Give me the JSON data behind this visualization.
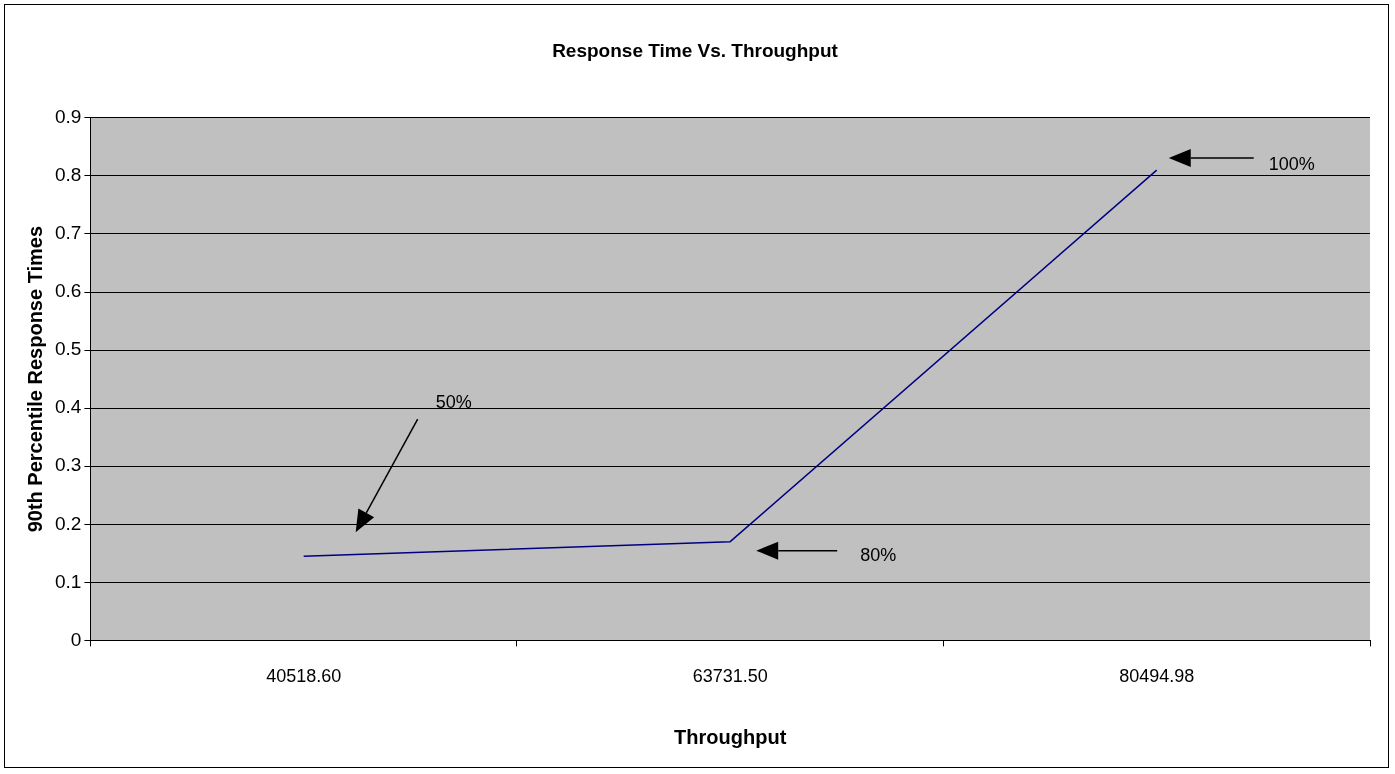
{
  "chart_data": {
    "type": "line",
    "title": "Response Time Vs. Throughput",
    "xlabel": "Throughput",
    "ylabel": "90th Percentile Response Times",
    "categories": [
      "40518.60",
      "63731.50",
      "80494.98"
    ],
    "series": [
      {
        "color": "#000080",
        "values": [
          0.145,
          0.17,
          0.81
        ]
      }
    ],
    "ylim": [
      0,
      0.9
    ],
    "yticks": [
      0,
      0.1,
      0.2,
      0.3,
      0.4,
      0.5,
      0.6,
      0.7,
      0.8,
      0.9
    ],
    "grid": "y",
    "legend": false,
    "marker": "none",
    "line_style": "solid",
    "annotations": [
      "50%",
      "80%",
      "100%"
    ]
  }
}
